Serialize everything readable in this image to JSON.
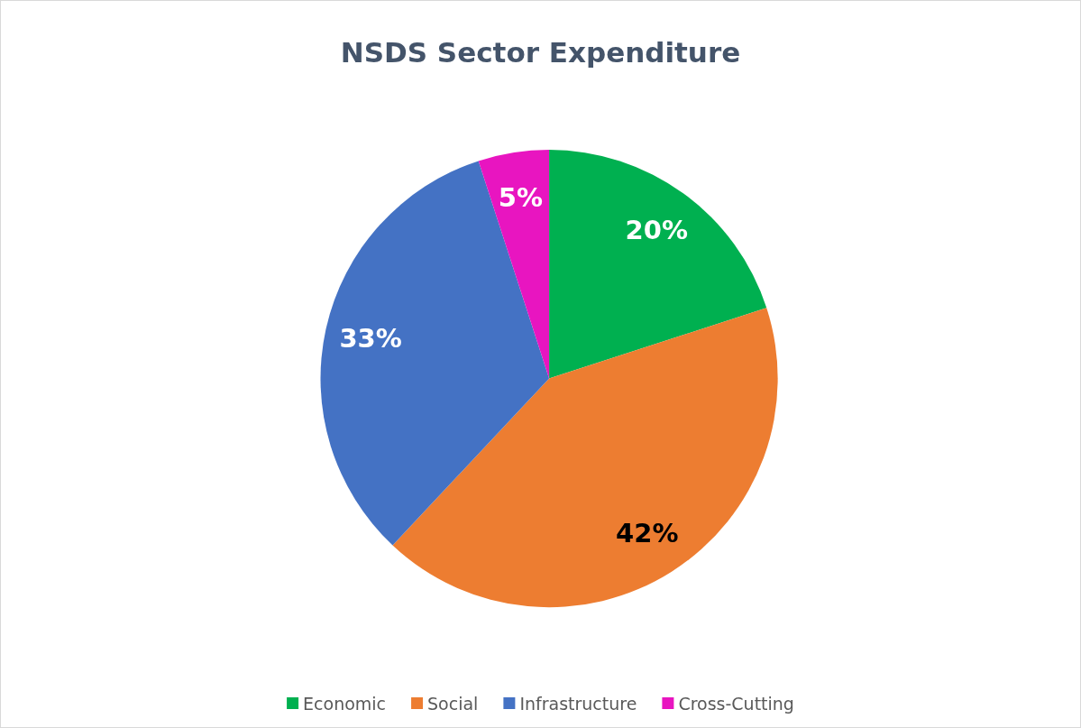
{
  "chart_data": {
    "type": "pie",
    "title": "NSDS Sector Expenditure",
    "categories": [
      "Economic",
      "Social",
      "Infrastructure",
      "Cross-Cutting"
    ],
    "values": [
      20,
      42,
      33,
      5
    ],
    "colors": [
      "#00b050",
      "#ed7d31",
      "#4472c4",
      "#e815c0"
    ],
    "value_labels": [
      "20%",
      "42%",
      "33%",
      "5%"
    ],
    "legend": "bottom"
  }
}
